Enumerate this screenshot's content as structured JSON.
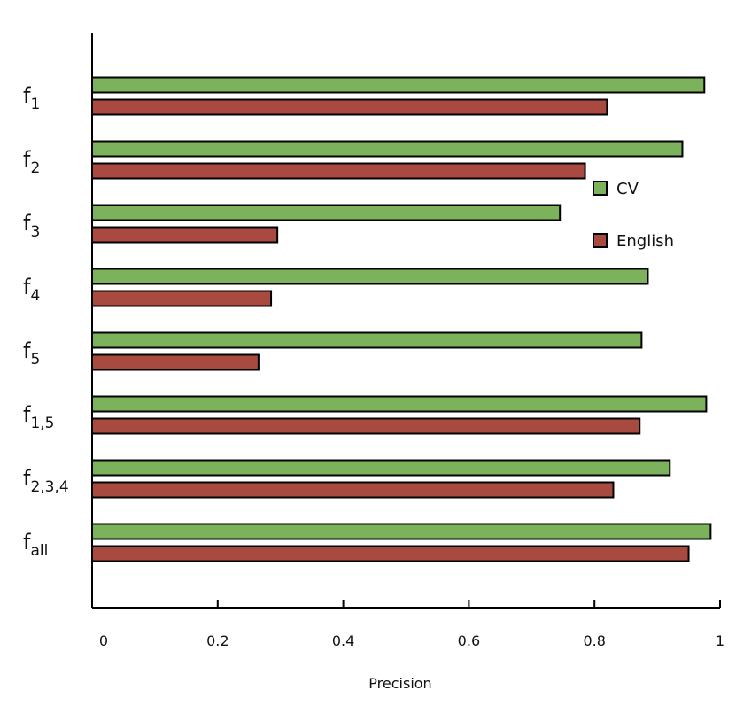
{
  "chart_data": {
    "type": "bar",
    "orientation": "horizontal",
    "categories": [
      {
        "base": "f",
        "sub": "1"
      },
      {
        "base": "f",
        "sub": "2"
      },
      {
        "base": "f",
        "sub": "3"
      },
      {
        "base": "f",
        "sub": "4"
      },
      {
        "base": "f",
        "sub": "5"
      },
      {
        "base": "f",
        "sub": "1,5"
      },
      {
        "base": "f",
        "sub": "2,3,4"
      },
      {
        "base": "f",
        "sub": "all"
      }
    ],
    "series": [
      {
        "name": "CV",
        "color": "#7cb25c",
        "values": [
          0.975,
          0.94,
          0.745,
          0.885,
          0.875,
          0.978,
          0.92,
          0.985
        ]
      },
      {
        "name": "English",
        "color": "#a84a40",
        "values": [
          0.82,
          0.785,
          0.295,
          0.285,
          0.265,
          0.872,
          0.83,
          0.95
        ]
      }
    ],
    "xlabel": "Precision",
    "xlim": [
      0,
      1
    ],
    "xticks": [
      "0",
      "0.2",
      "0.4",
      "0.6",
      "0.8",
      "1"
    ],
    "legend_position": "right",
    "grid": false
  }
}
